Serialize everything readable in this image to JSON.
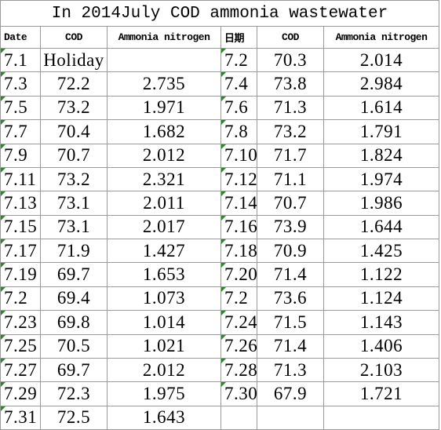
{
  "header": {
    "title": "In 2014July COD ammonia wastewater"
  },
  "table": {
    "columns": [
      "Date",
      "COD",
      "Ammonia nitrogen",
      "日期",
      "COD",
      "Ammonia nitrogen"
    ],
    "rows": [
      [
        "7.1",
        "Holiday",
        null,
        "7.2",
        "70.3",
        "2.014"
      ],
      [
        "7.3",
        "72.2",
        "2.735",
        "7.4",
        "73.8",
        "2.984"
      ],
      [
        "7.5",
        "73.2",
        "1.971",
        "7.6",
        "71.3",
        "1.614"
      ],
      [
        "7.7",
        "70.4",
        "1.682",
        "7.8",
        "73.2",
        "1.791"
      ],
      [
        "7.9",
        "70.7",
        "2.012",
        "7.10",
        "71.7",
        "1.824"
      ],
      [
        "7.11",
        "73.2",
        "2.321",
        "7.12",
        "71.1",
        "1.974"
      ],
      [
        "7.13",
        "73.1",
        "2.011",
        "7.14",
        "70.7",
        "1.986"
      ],
      [
        "7.15",
        "73.1",
        "2.017",
        "7.16",
        "73.9",
        "1.644"
      ],
      [
        "7.17",
        "71.9",
        "1.427",
        "7.18",
        "70.9",
        "1.425"
      ],
      [
        "7.19",
        "69.7",
        "1.653",
        "7.20",
        "71.4",
        "1.122"
      ],
      [
        "7.2",
        "69.4",
        "1.073",
        "7.2",
        "73.6",
        "1.124"
      ],
      [
        "7.23",
        "69.8",
        "1.014",
        "7.24",
        "71.5",
        "1.143"
      ],
      [
        "7.25",
        "70.5",
        "1.021",
        "7.26",
        "71.4",
        "1.406"
      ],
      [
        "7.27",
        "69.7",
        "2.012",
        "7.28",
        "71.3",
        "2.103"
      ],
      [
        "7.29",
        "72.3",
        "1.975",
        "7.30",
        "67.9",
        "1.721"
      ],
      [
        "7.31",
        "72.5",
        "1.643",
        null,
        null,
        null
      ]
    ]
  }
}
